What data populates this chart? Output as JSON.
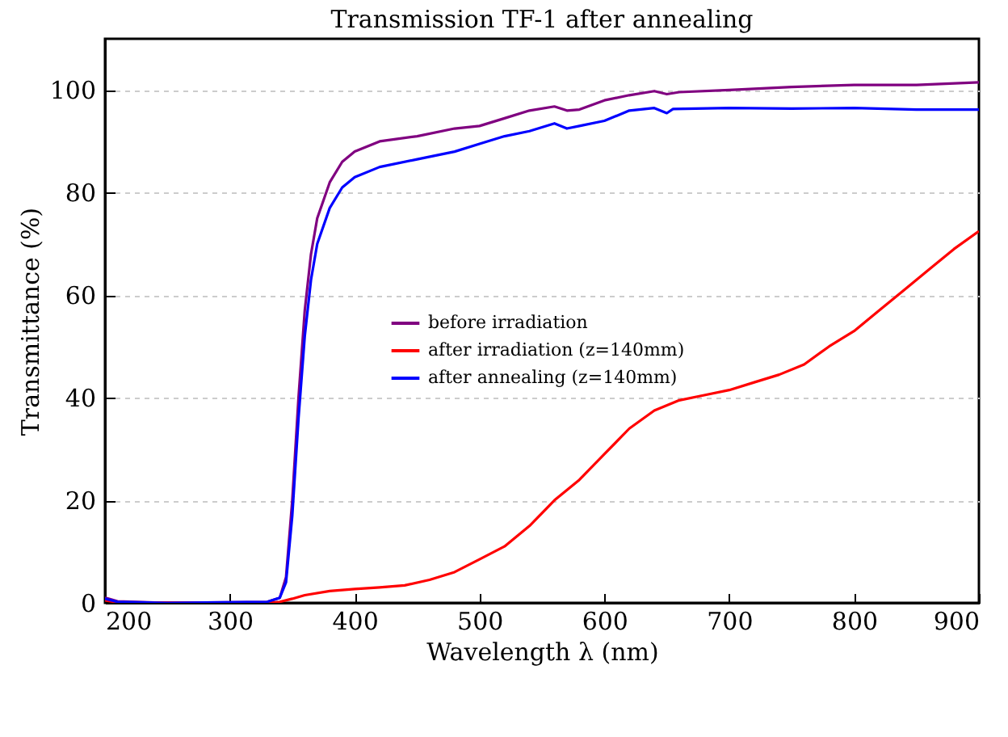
{
  "chart_data": {
    "type": "line",
    "title": "Transmission TF-1 after annealing",
    "xlabel": "Wavelength λ (nm)",
    "ylabel": "Transmittance (%)",
    "xlim": [
      200,
      900
    ],
    "xticks": [
      200,
      300,
      400,
      500,
      600,
      700,
      800,
      900
    ],
    "ylim": [
      0,
      110
    ],
    "yticks": [
      0,
      20,
      40,
      60,
      80,
      100
    ],
    "grid": "y",
    "legend": "center",
    "marker": "none",
    "line_style": "solid",
    "series": [
      {
        "name": "before irradiation",
        "color": "#800080",
        "x": [
          200,
          210,
          250,
          330,
          340,
          345,
          350,
          355,
          360,
          365,
          370,
          380,
          390,
          400,
          420,
          450,
          480,
          500,
          520,
          540,
          560,
          570,
          580,
          600,
          620,
          640,
          650,
          660,
          700,
          750,
          800,
          850,
          900
        ],
        "values": [
          1,
          0.3,
          0,
          0.2,
          1,
          5,
          20,
          40,
          57,
          68,
          75,
          82,
          86,
          88,
          90,
          91,
          92.5,
          93,
          94.5,
          96,
          96.8,
          96,
          96.2,
          98,
          99,
          99.8,
          99.2,
          99.6,
          100,
          100.6,
          101,
          101,
          101.5
        ]
      },
      {
        "name": "after irradiation (z=140mm)",
        "color": "#ff0000",
        "x": [
          200,
          210,
          330,
          340,
          350,
          360,
          380,
          400,
          420,
          440,
          460,
          480,
          500,
          520,
          540,
          560,
          580,
          600,
          620,
          640,
          660,
          680,
          700,
          720,
          740,
          760,
          780,
          800,
          820,
          840,
          860,
          880,
          900
        ],
        "values": [
          0.5,
          0.1,
          0,
          0.2,
          0.8,
          1.5,
          2.3,
          2.7,
          3,
          3.4,
          4.5,
          6,
          8.5,
          11,
          15,
          20,
          24,
          29,
          34,
          37.5,
          39.5,
          40.5,
          41.5,
          43,
          44.5,
          46.5,
          50,
          53,
          57,
          61,
          65,
          69,
          72.5
        ]
      },
      {
        "name": "after annealing (z=140mm)",
        "color": "#0000ff",
        "x": [
          200,
          210,
          250,
          330,
          340,
          345,
          350,
          355,
          360,
          365,
          370,
          380,
          390,
          400,
          420,
          450,
          480,
          500,
          520,
          540,
          560,
          570,
          580,
          600,
          620,
          640,
          650,
          655,
          700,
          750,
          800,
          850,
          900
        ],
        "values": [
          0.8,
          0.2,
          0,
          0.2,
          1,
          4,
          17,
          36,
          52,
          63,
          70,
          77,
          81,
          83,
          85,
          86.5,
          88,
          89.5,
          91,
          92,
          93.5,
          92.5,
          93,
          94,
          96,
          96.5,
          95.5,
          96.3,
          96.5,
          96.4,
          96.5,
          96.2,
          96.2
        ]
      }
    ]
  }
}
